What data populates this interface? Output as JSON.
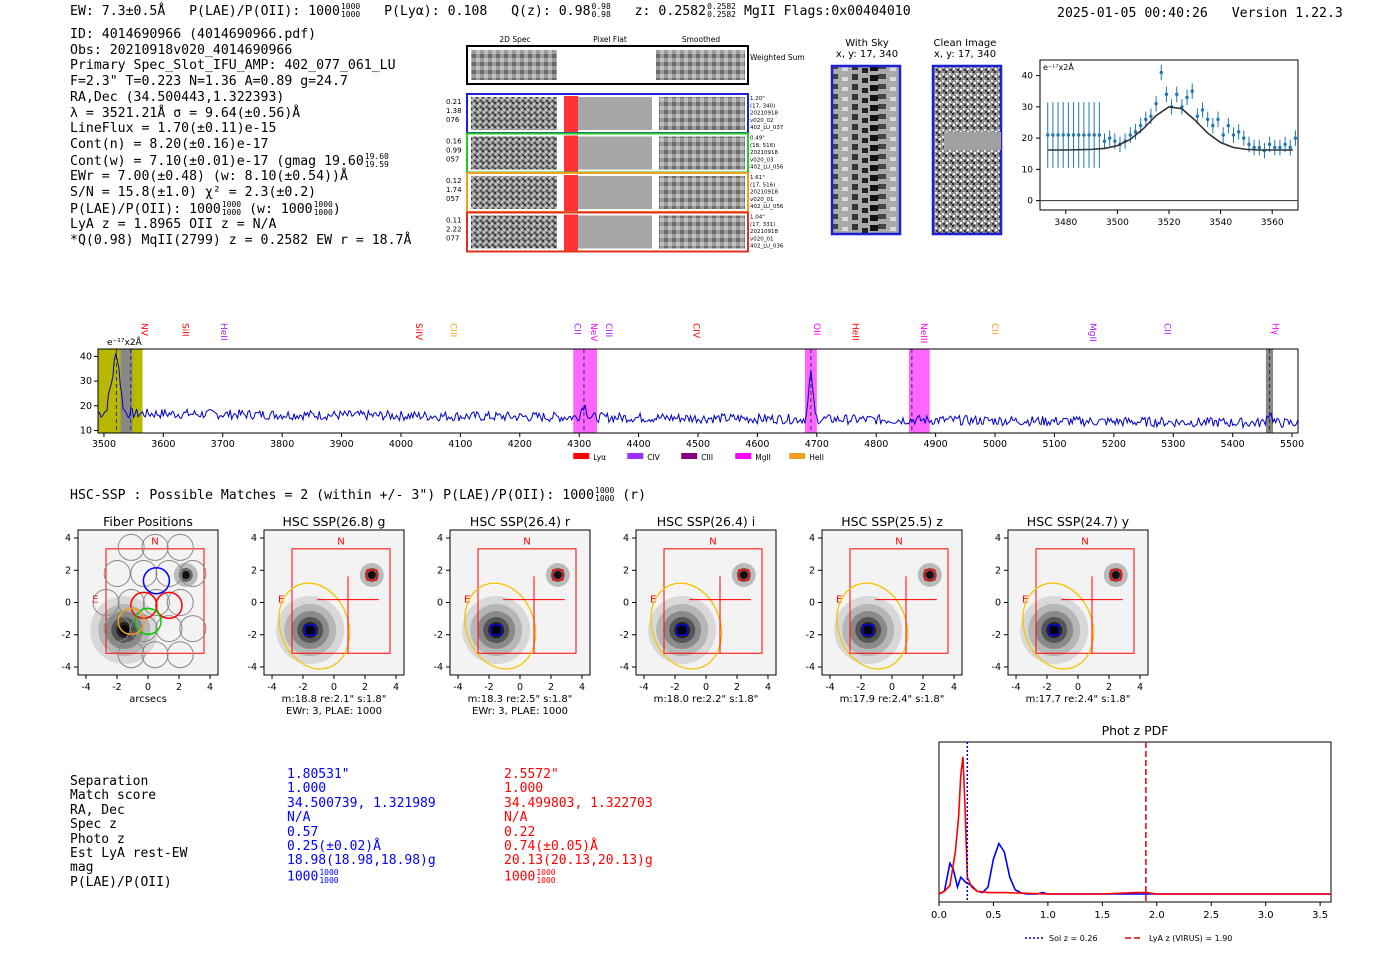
{
  "header": {
    "ew": "EW: 7.3±0.5Å",
    "plae_label": "P(LAE)/P(OII): 1000",
    "plae_frac": [
      "1000",
      "1000"
    ],
    "plya": "P(Lyα): 0.108",
    "qz_label": "Q(z): 0.98",
    "qz_frac": [
      "0.98",
      "0.98"
    ],
    "z_label": "z: 0.2582",
    "z_frac": [
      "0.2582",
      "0.2582"
    ],
    "z_tail": "MgII   Flags:0x00404010",
    "datetime": "2025-01-05 00:40:26",
    "version": "Version 1.22.3"
  },
  "info": {
    "lines": [
      "ID: 4014690966 (4014690966.pdf)",
      "Obs: 20210918v020_4014690966",
      "Primary Spec_Slot_IFU_AMP: 402_077_061_LU",
      "F=2.3\"  T=0.223  N=1.36  A=0.89  g=24.7",
      "RA,Dec (34.500443,1.322393)",
      "λ = 3521.21Å  σ = 9.64(±0.56)Å",
      "LineFlux = 1.70(±0.11)e-15",
      "Cont(n) = 8.20(±0.16)e-17",
      "Cont(w) = 7.10(±0.01)e-17 (gmag 19.60",
      "EWr = 7.00(±0.48) (w: 8.10(±0.54))Å",
      "S/N = 15.8(±1.0)  χ² = 2.3(±0.2)",
      "P(LAE)/P(OII): 1000",
      "LyA z = 1.8965  OII z = N/A",
      "*Q(0.98) MqII(2799) z = 0.2582  EW r = 18.7Å"
    ],
    "gmag_frac": [
      "19.60",
      "19.59"
    ],
    "plae_frac": [
      "1000",
      "1000"
    ],
    "plae_w": "(w: 1000",
    "plae_w_frac": [
      "1000",
      "1000"
    ],
    "plae_w_close": ")"
  },
  "cutouts": {
    "col_titles": [
      "2D Spec",
      "Pixel Flat",
      "Smoothed"
    ],
    "weighted_sum": "Weighted Sum",
    "rows": [
      {
        "left": [
          "0.21",
          "1.38",
          "076"
        ],
        "right": [
          "1.20\"",
          "(17, 340)",
          "20210918",
          "v020_02",
          "402_LU_037"
        ],
        "color": "#1f1fd8"
      },
      {
        "left": [
          "0.16",
          "0.99",
          "057"
        ],
        "right": [
          "0.49\"",
          "(18, 516)",
          "20210918",
          "v020_03",
          "402_LU_056"
        ],
        "color": "#22cc22"
      },
      {
        "left": [
          "0.12",
          "1.74",
          "057"
        ],
        "right": [
          "1.61\"",
          "(17, 516)",
          "20210918",
          "v020_01",
          "402_LU_056"
        ],
        "color": "#f0a020"
      },
      {
        "left": [
          "0.11",
          "2.22",
          "077"
        ],
        "right": [
          "1.04\"",
          "(17, 331)",
          "20210918",
          "v020_01",
          "402_LU_036"
        ],
        "color": "#e03020"
      }
    ],
    "with_sky_title": "With Sky",
    "with_sky_sub": "x, y: 17, 340",
    "clean_title": "Clean Image",
    "clean_sub": "x, y: 17, 340"
  },
  "zoom_chart": {
    "type": "scatter",
    "ylabel": "e⁻¹⁷x2Å",
    "xlim": [
      3470,
      3570
    ],
    "ylim": [
      -3,
      45
    ],
    "xticks": [
      3480,
      3500,
      3520,
      3540,
      3560
    ],
    "yticks": [
      0,
      10,
      20,
      30,
      40
    ],
    "x": [
      3473,
      3475,
      3477,
      3479,
      3481,
      3483,
      3485,
      3487,
      3489,
      3491,
      3493,
      3495,
      3497,
      3499,
      3501,
      3503,
      3505,
      3507,
      3509,
      3511,
      3513,
      3515,
      3517,
      3519,
      3521,
      3523,
      3525,
      3527,
      3529,
      3531,
      3533,
      3535,
      3537,
      3539,
      3541,
      3543,
      3545,
      3547,
      3549,
      3551,
      3553,
      3555,
      3557,
      3559,
      3561,
      3563,
      3565,
      3567,
      3569
    ],
    "y": [
      21,
      21,
      21,
      21,
      21,
      21,
      21,
      21,
      21,
      21,
      21,
      19,
      20,
      19,
      18,
      19,
      21,
      22,
      24,
      26,
      27,
      31,
      41,
      34,
      30,
      34,
      30,
      33,
      35,
      27,
      29,
      26,
      24,
      26,
      21,
      24,
      21,
      22,
      20,
      18,
      17,
      17,
      16,
      18,
      17,
      17,
      18,
      17,
      20
    ],
    "fit_x": [
      3473,
      3480,
      3490,
      3495,
      3500,
      3505,
      3510,
      3515,
      3520,
      3525,
      3530,
      3535,
      3540,
      3545,
      3550,
      3555,
      3560,
      3565,
      3568
    ],
    "fit_y": [
      16.2,
      16.2,
      16.4,
      16.7,
      17.6,
      19.6,
      23.0,
      27.2,
      30.0,
      29.4,
      25.8,
      21.6,
      18.6,
      17.0,
      16.4,
      16.2,
      16.2,
      16.2,
      16.2
    ]
  },
  "full_chart": {
    "type": "line",
    "ylabel": "e⁻¹⁷x2Å",
    "xlim": [
      3490,
      5510
    ],
    "ylim": [
      9,
      43
    ],
    "xticks": [
      3500,
      3600,
      3700,
      3800,
      3900,
      4000,
      4100,
      4200,
      4300,
      4400,
      4500,
      4600,
      4700,
      4800,
      4900,
      5000,
      5100,
      5200,
      5300,
      5400,
      5500
    ],
    "yticks": [
      10,
      20,
      30,
      40
    ],
    "lines": [
      {
        "name": "NV",
        "x": 3558,
        "color": "#ff0000"
      },
      {
        "name": "SiII",
        "x": 3627,
        "color": "#ff0000"
      },
      {
        "name": "HeII",
        "x": 3692,
        "color": "#a020f0"
      },
      {
        "name": "SiIV",
        "x": 4020,
        "color": "#ff0000"
      },
      {
        "name": "CIII",
        "x": 4078,
        "color": "#f0a020"
      },
      {
        "name": "CII",
        "x": 4287,
        "color": "#a020f0"
      },
      {
        "name": "NeV",
        "x": 4315,
        "color": "#ff00ff"
      },
      {
        "name": "CIII",
        "x": 4340,
        "color": "#a020f0"
      },
      {
        "name": "CIV",
        "x": 4487,
        "color": "#ff0000"
      },
      {
        "name": "OII",
        "x": 4690,
        "color": "#ff00ff"
      },
      {
        "name": "HeII",
        "x": 4755,
        "color": "#ff0000"
      },
      {
        "name": "NeIII",
        "x": 4870,
        "color": "#ff00ff"
      },
      {
        "name": "CII",
        "x": 4990,
        "color": "#f0a020"
      },
      {
        "name": "MgII",
        "x": 5155,
        "color": "#a020f0"
      },
      {
        "name": "CII",
        "x": 5280,
        "color": "#a020f0"
      },
      {
        "name": "Hγ",
        "x": 5462,
        "color": "#ff00ff"
      }
    ],
    "legend": [
      {
        "name": "Lyα",
        "color": "#ff0000"
      },
      {
        "name": "CIV",
        "color": "#9b30ff"
      },
      {
        "name": "CIII",
        "color": "#800080"
      },
      {
        "name": "MgII",
        "color": "#ff00ff"
      },
      {
        "name": "HeII",
        "color": "#f0a020"
      }
    ]
  },
  "hsc": {
    "title": "HSC-SSP : Possible Matches = 2 (within +/- 3\")  P(LAE)/P(OII): 1000",
    "title_frac": [
      "1000",
      "1000"
    ],
    "title_tail": "(r)",
    "panels": [
      {
        "title": "Fiber Positions",
        "cap1": "arcsecs",
        "cap2": ""
      },
      {
        "title": "HSC SSP(26.8) g",
        "cap1": "m:18.8  re:2.1\"  s:1.8\"",
        "cap2": "EWr: 3, PLAE: 1000"
      },
      {
        "title": "HSC SSP(26.4) r",
        "cap1": "m:18.3  re:2.5\"  s:1.8\"",
        "cap2": "EWr: 3, PLAE: 1000"
      },
      {
        "title": "HSC SSP(26.4) i",
        "cap1": "m:18.0  re:2.2\"  s:1.8\"",
        "cap2": ""
      },
      {
        "title": "HSC SSP(25.5) z",
        "cap1": "m:17.9  re:2.4\"  s:1.8\"",
        "cap2": ""
      },
      {
        "title": "HSC SSP(24.7) y",
        "cap1": "m:17.7  re:2.4\"  s:1.8\"",
        "cap2": ""
      }
    ],
    "axis_ticks": [
      "-4",
      "-2",
      "0",
      "2",
      "4"
    ],
    "n_label": "N",
    "e_label": "E"
  },
  "match_table": {
    "labels": [
      "Separation",
      "Match score",
      "RA, Dec",
      "Spec z",
      "Photo z",
      "Est LyA rest-EW",
      "mag",
      "P(LAE)/P(OII)"
    ],
    "col1": [
      "1.80531\"",
      "1.000",
      "34.500739, 1.321989",
      "N/A",
      "0.57",
      "0.25(±0.02)Å",
      "18.98(18.98,18.98)g",
      "1000"
    ],
    "col1_frac": [
      "1000",
      "1000"
    ],
    "col2": [
      "2.5572\"",
      "1.000",
      "34.499803, 1.322703",
      "N/A",
      "0.22",
      "0.74(±0.05)Å",
      "20.13(20.13,20.13)g",
      "1000"
    ],
    "col2_frac": [
      "1000",
      "1000"
    ]
  },
  "photz": {
    "type": "line",
    "title": "Phot z PDF",
    "xlim": [
      0,
      3.6
    ],
    "xticks": [
      "0.0",
      "0.5",
      "1.0",
      "1.5",
      "2.0",
      "2.5",
      "3.0",
      "3.5"
    ],
    "sol_z": 0.26,
    "lya_z": 1.9,
    "legend_sol": "Sol z = 0.26",
    "legend_lya": "LyA z (VIRUS) = 1.90",
    "blue_x": [
      0.0,
      0.05,
      0.1,
      0.13,
      0.17,
      0.2,
      0.25,
      0.3,
      0.35,
      0.4,
      0.45,
      0.5,
      0.55,
      0.6,
      0.65,
      0.7,
      0.75,
      0.8,
      0.9,
      0.95,
      1.0,
      1.1,
      1.5,
      2.0,
      3.6
    ],
    "blue_y": [
      0.0,
      0.02,
      0.22,
      0.18,
      0.05,
      0.12,
      0.08,
      0.06,
      0.02,
      0.01,
      0.05,
      0.25,
      0.36,
      0.3,
      0.12,
      0.03,
      0.01,
      0.0,
      0.0,
      0.01,
      0.0,
      0.0,
      0.0,
      0.0,
      0.0
    ],
    "red_x": [
      0.0,
      0.05,
      0.1,
      0.15,
      0.18,
      0.2,
      0.22,
      0.24,
      0.26,
      0.3,
      0.35,
      0.45,
      0.6,
      1.0,
      1.5,
      1.8,
      1.9,
      2.0,
      2.5,
      3.6
    ],
    "red_y": [
      0.0,
      0.02,
      0.06,
      0.3,
      0.55,
      0.85,
      0.98,
      0.6,
      0.12,
      0.05,
      0.02,
      0.01,
      0.01,
      0.0,
      0.0,
      0.01,
      0.01,
      0.0,
      0.0,
      0.0
    ]
  }
}
